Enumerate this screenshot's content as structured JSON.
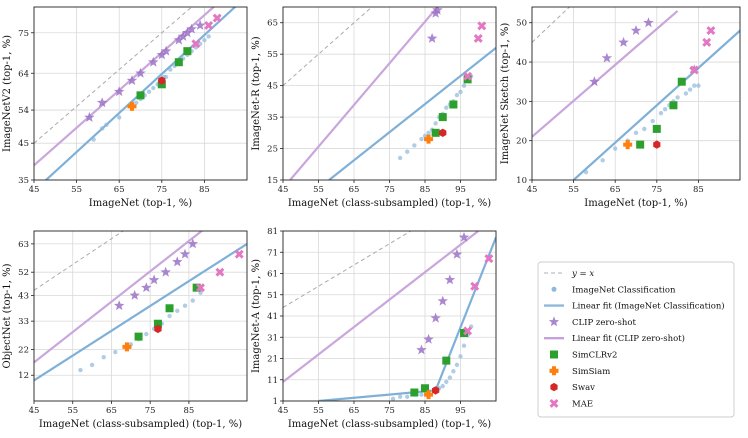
{
  "legend": {
    "items": [
      {
        "label": "y = x",
        "kind": "dash",
        "color": "#b0b0b0"
      },
      {
        "label": "ImageNet Classification",
        "kind": "dot",
        "color": "#8fb8dc"
      },
      {
        "label": "Linear fit (ImageNet Classification)",
        "kind": "line",
        "color": "#8fb8dc"
      },
      {
        "label": "CLIP zero-shot",
        "kind": "star",
        "color": "#9b72c6"
      },
      {
        "label": "Linear fit (CLIP zero-shot)",
        "kind": "line",
        "color": "#c5a3da"
      },
      {
        "label": "SimCLRv2",
        "kind": "square",
        "color": "#2ca02c"
      },
      {
        "label": "SimSiam",
        "kind": "plus",
        "color": "#ff7f0e"
      },
      {
        "label": "Swav",
        "kind": "hex",
        "color": "#d62728"
      },
      {
        "label": "MAE",
        "kind": "x",
        "color": "#e377c2"
      }
    ]
  },
  "chart_data": [
    {
      "type": "scatter",
      "id": "p1",
      "xlabel": "ImageNet (top-1, %)",
      "ylabel": "ImageNetV2 (top-1, %)",
      "xticks": [
        45,
        55,
        65,
        75,
        85
      ],
      "yticks": [
        35,
        45,
        54,
        64,
        75
      ],
      "xlim": [
        45,
        95
      ],
      "ylim": [
        35,
        82
      ],
      "imagenet_points": [
        [
          59,
          46
        ],
        [
          61,
          49
        ],
        [
          62,
          50
        ],
        [
          65,
          52
        ],
        [
          68,
          55
        ],
        [
          69,
          56
        ],
        [
          70,
          57
        ],
        [
          71,
          58
        ],
        [
          72,
          59
        ],
        [
          73,
          60
        ],
        [
          74,
          61
        ],
        [
          75,
          62
        ],
        [
          75.5,
          63
        ],
        [
          76,
          63
        ],
        [
          77,
          65
        ],
        [
          78,
          66
        ],
        [
          79,
          67
        ],
        [
          80,
          68
        ],
        [
          81,
          69
        ],
        [
          82,
          70
        ],
        [
          83,
          71
        ],
        [
          84,
          72
        ],
        [
          85,
          73
        ],
        [
          86,
          74
        ]
      ],
      "imagenet_fit": [
        [
          45,
          32
        ],
        [
          95,
          85
        ]
      ],
      "clip_points": [
        [
          58,
          52
        ],
        [
          61,
          56
        ],
        [
          65,
          59
        ],
        [
          68,
          62
        ],
        [
          70,
          64
        ],
        [
          73,
          67
        ],
        [
          75,
          69
        ],
        [
          76,
          70
        ],
        [
          79,
          73
        ],
        [
          80,
          74
        ],
        [
          81,
          75
        ],
        [
          82,
          76
        ],
        [
          84,
          77
        ]
      ],
      "clip_fit": [
        [
          45,
          39
        ],
        [
          95,
          90
        ]
      ],
      "simclr": [
        [
          70,
          58
        ],
        [
          75,
          61
        ],
        [
          79,
          67
        ],
        [
          81,
          70
        ]
      ],
      "simsiam": [
        [
          68,
          55
        ]
      ],
      "swav": [
        [
          75,
          62
        ]
      ],
      "mae": [
        [
          83,
          72
        ],
        [
          86,
          77
        ],
        [
          88,
          79
        ]
      ]
    },
    {
      "type": "scatter",
      "id": "p2",
      "xlabel": "ImageNet (class-subsampled) (top-1, %)",
      "ylabel": "ImageNet-R (top-1, %)",
      "xticks": [
        45,
        55,
        65,
        75,
        85,
        95
      ],
      "yticks": [
        15,
        25,
        35,
        45,
        55,
        65
      ],
      "xlim": [
        45,
        105
      ],
      "ylim": [
        15,
        70
      ],
      "imagenet_points": [
        [
          78,
          22
        ],
        [
          80,
          24
        ],
        [
          82,
          26
        ],
        [
          84,
          28
        ],
        [
          85,
          29
        ],
        [
          86,
          30
        ],
        [
          87,
          31
        ],
        [
          88,
          33
        ],
        [
          89,
          35
        ],
        [
          90,
          36
        ],
        [
          91,
          38
        ],
        [
          92,
          39
        ],
        [
          93,
          40
        ],
        [
          94,
          42
        ],
        [
          95,
          43
        ],
        [
          96,
          45
        ],
        [
          97,
          47
        ],
        [
          98,
          48
        ]
      ],
      "imagenet_fit": [
        [
          58,
          15
        ],
        [
          105,
          57
        ]
      ],
      "clip_points": [
        [
          87,
          60
        ],
        [
          88,
          68
        ],
        [
          88.5,
          69
        ]
      ],
      "clip_fit": [
        [
          47,
          15
        ],
        [
          90,
          72
        ]
      ],
      "simclr": [
        [
          88,
          30
        ],
        [
          90,
          35
        ],
        [
          93,
          39
        ],
        [
          97,
          47
        ]
      ],
      "simsiam": [
        [
          86,
          28
        ]
      ],
      "swav": [
        [
          90,
          30
        ]
      ],
      "mae": [
        [
          97,
          48
        ],
        [
          100,
          60
        ],
        [
          101,
          64
        ]
      ]
    },
    {
      "type": "scatter",
      "id": "p3",
      "xlabel": "ImageNet (top-1, %)",
      "ylabel": "ImageNet Sketch (top-1, %)",
      "xticks": [
        45,
        55,
        65,
        75,
        85
      ],
      "yticks": [
        10,
        20,
        30,
        40,
        50
      ],
      "xlim": [
        45,
        95
      ],
      "ylim": [
        10,
        54
      ],
      "imagenet_points": [
        [
          58,
          12
        ],
        [
          62,
          15
        ],
        [
          65,
          18
        ],
        [
          68,
          20
        ],
        [
          70,
          22
        ],
        [
          72,
          23
        ],
        [
          74,
          25
        ],
        [
          76,
          27
        ],
        [
          77,
          28
        ],
        [
          78,
          29
        ],
        [
          79,
          30
        ],
        [
          80,
          31
        ],
        [
          82,
          32
        ],
        [
          83,
          33
        ],
        [
          84,
          34
        ],
        [
          85,
          34
        ]
      ],
      "imagenet_fit": [
        [
          55,
          10
        ],
        [
          95,
          48
        ]
      ],
      "clip_points": [
        [
          60,
          35
        ],
        [
          63,
          41
        ],
        [
          67,
          45
        ],
        [
          70,
          48
        ],
        [
          73,
          50
        ],
        [
          84,
          38
        ]
      ],
      "clip_fit": [
        [
          45,
          21
        ],
        [
          80,
          53
        ]
      ],
      "simclr": [
        [
          71,
          19
        ],
        [
          75,
          23
        ],
        [
          79,
          29
        ],
        [
          81,
          35
        ]
      ],
      "simsiam": [
        [
          68,
          19
        ]
      ],
      "swav": [
        [
          75,
          19
        ]
      ],
      "mae": [
        [
          84,
          38
        ],
        [
          87,
          45
        ],
        [
          88,
          48
        ]
      ]
    },
    {
      "type": "scatter",
      "id": "p4",
      "xlabel": "ImageNet (class-subsampled) (top-1, %)",
      "ylabel": "ObjectNet (top-1, %)",
      "xticks": [
        45,
        55,
        65,
        75,
        85
      ],
      "yticks": [
        12,
        22,
        33,
        43,
        52,
        63
      ],
      "xlim": [
        45,
        100
      ],
      "ylim": [
        2,
        68
      ],
      "imagenet_points": [
        [
          57,
          14
        ],
        [
          60,
          16
        ],
        [
          63,
          19
        ],
        [
          66,
          21
        ],
        [
          70,
          24
        ],
        [
          72,
          26
        ],
        [
          74,
          28
        ],
        [
          76,
          30
        ],
        [
          78,
          32
        ],
        [
          80,
          35
        ],
        [
          82,
          37
        ],
        [
          84,
          39
        ],
        [
          86,
          41
        ],
        [
          88,
          44
        ]
      ],
      "imagenet_fit": [
        [
          45,
          10
        ],
        [
          100,
          63
        ]
      ],
      "clip_points": [
        [
          67,
          39
        ],
        [
          71,
          43
        ],
        [
          74,
          46
        ],
        [
          76,
          49
        ],
        [
          79,
          52
        ],
        [
          82,
          56
        ],
        [
          84,
          59
        ],
        [
          86,
          63
        ]
      ],
      "clip_fit": [
        [
          45,
          17
        ],
        [
          90,
          70
        ]
      ],
      "simclr": [
        [
          72,
          27
        ],
        [
          77,
          32
        ],
        [
          80,
          38
        ],
        [
          87,
          46
        ]
      ],
      "simsiam": [
        [
          69,
          23
        ]
      ],
      "swav": [
        [
          77,
          30
        ]
      ],
      "mae": [
        [
          88,
          46
        ],
        [
          93,
          52
        ],
        [
          98,
          59
        ]
      ]
    },
    {
      "type": "scatter",
      "id": "p5",
      "xlabel": "ImageNet (class-subsampled) (top-1, %)",
      "ylabel": "ImageNet-A (top-1, %)",
      "xticks": [
        45,
        55,
        65,
        75,
        85,
        95
      ],
      "yticks": [
        1,
        11,
        21,
        31,
        41,
        51,
        61,
        71,
        81
      ],
      "xlim": [
        45,
        105
      ],
      "ylim": [
        1,
        81
      ],
      "imagenet_points": [
        [
          76,
          2
        ],
        [
          78,
          3
        ],
        [
          80,
          3
        ],
        [
          82,
          4
        ],
        [
          84,
          4
        ],
        [
          86,
          5
        ],
        [
          88,
          6
        ],
        [
          89,
          7
        ],
        [
          90,
          8
        ],
        [
          91,
          10
        ],
        [
          92,
          12
        ],
        [
          93,
          15
        ],
        [
          94,
          18
        ],
        [
          95,
          22
        ],
        [
          96,
          27
        ],
        [
          97,
          32
        ],
        [
          98,
          36
        ]
      ],
      "imagenet_fit": [
        [
          55,
          1
        ],
        [
          88,
          6
        ],
        [
          105,
          78
        ]
      ],
      "clip_points": [
        [
          84,
          25
        ],
        [
          86,
          30
        ],
        [
          88,
          40
        ],
        [
          90,
          48
        ],
        [
          92,
          58
        ],
        [
          94,
          70
        ],
        [
          96,
          78
        ]
      ],
      "clip_fit": [
        [
          45,
          10
        ],
        [
          100,
          81
        ]
      ],
      "simclr": [
        [
          82,
          5
        ],
        [
          85,
          7
        ],
        [
          91,
          20
        ],
        [
          96,
          33
        ]
      ],
      "simsiam": [
        [
          86,
          4
        ]
      ],
      "swav": [
        [
          88,
          6
        ]
      ],
      "mae": [
        [
          97,
          34
        ],
        [
          99,
          55
        ],
        [
          103,
          68
        ]
      ]
    }
  ]
}
